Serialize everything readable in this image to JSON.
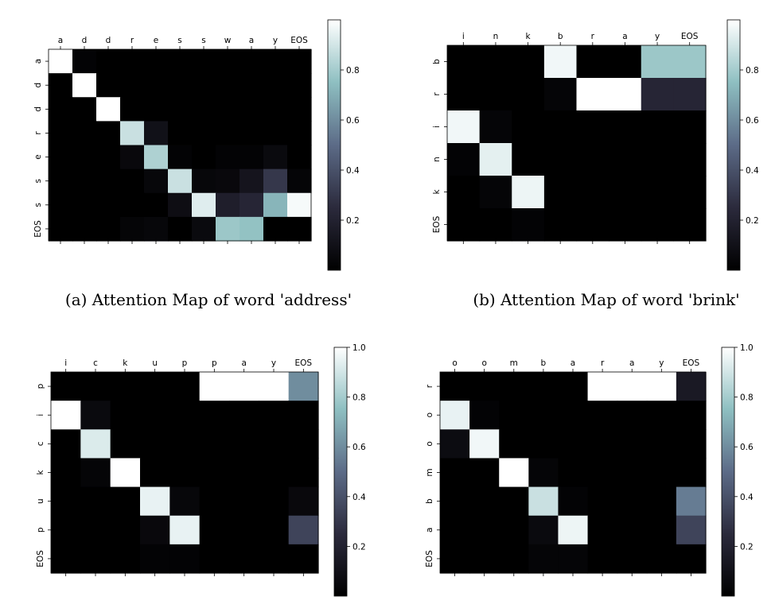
{
  "colors": {
    "colormap": [
      "#000000",
      "#2b2a3c",
      "#5c6b87",
      "#8ebfc1",
      "#ffffff"
    ]
  },
  "chart_data": [
    {
      "type": "heatmap",
      "caption": "(a) Attention Map of word 'address'",
      "x_labels": [
        "a",
        "d",
        "d",
        "r",
        "e",
        "s",
        "s",
        "w",
        "a",
        "y",
        "EOS"
      ],
      "y_labels": [
        "a",
        "d",
        "d",
        "r",
        "e",
        "s",
        "s",
        "EOS"
      ],
      "values": [
        [
          1.0,
          0.02,
          0.0,
          0.0,
          0.0,
          0.0,
          0.0,
          0.0,
          0.0,
          0.0,
          0.0
        ],
        [
          0.0,
          1.0,
          0.0,
          0.0,
          0.0,
          0.0,
          0.0,
          0.0,
          0.0,
          0.0,
          0.0
        ],
        [
          0.0,
          0.0,
          1.0,
          0.0,
          0.0,
          0.0,
          0.0,
          0.0,
          0.0,
          0.0,
          0.0
        ],
        [
          0.0,
          0.0,
          0.0,
          0.88,
          0.1,
          0.0,
          0.0,
          0.0,
          0.0,
          0.0,
          0.0
        ],
        [
          0.0,
          0.0,
          0.0,
          0.05,
          0.82,
          0.02,
          0.0,
          0.02,
          0.02,
          0.06,
          0.0
        ],
        [
          0.0,
          0.0,
          0.0,
          0.0,
          0.04,
          0.88,
          0.04,
          0.05,
          0.12,
          0.3,
          0.03
        ],
        [
          0.0,
          0.0,
          0.0,
          0.0,
          0.0,
          0.08,
          0.93,
          0.18,
          0.22,
          0.72,
          0.98
        ],
        [
          0.0,
          0.0,
          0.0,
          0.03,
          0.04,
          0.0,
          0.06,
          0.78,
          0.76,
          0.0,
          0.0
        ]
      ],
      "colorbar": {
        "ticks": [
          0.2,
          0.4,
          0.6,
          0.8
        ],
        "range": [
          0,
          1
        ]
      }
    },
    {
      "type": "heatmap",
      "caption": "(b) Attention Map of word 'brink'",
      "x_labels": [
        "i",
        "n",
        "k",
        "b",
        "r",
        "a",
        "y",
        "EOS"
      ],
      "y_labels": [
        "b",
        "r",
        "i",
        "n",
        "k",
        "EOS"
      ],
      "values": [
        [
          0.0,
          0.0,
          0.0,
          0.97,
          0.0,
          0.0,
          0.78,
          0.78
        ],
        [
          0.0,
          0.0,
          0.0,
          0.03,
          1.0,
          1.0,
          0.22,
          0.22
        ],
        [
          0.97,
          0.03,
          0.0,
          0.0,
          0.0,
          0.0,
          0.0,
          0.0
        ],
        [
          0.02,
          0.94,
          0.0,
          0.0,
          0.0,
          0.0,
          0.0,
          0.0
        ],
        [
          0.0,
          0.03,
          0.96,
          0.0,
          0.0,
          0.0,
          0.0,
          0.0
        ],
        [
          0.0,
          0.0,
          0.02,
          0.0,
          0.0,
          0.0,
          0.0,
          0.0
        ]
      ],
      "colorbar": {
        "ticks": [
          0.2,
          0.4,
          0.6,
          0.8
        ],
        "range": [
          0,
          1
        ]
      }
    },
    {
      "type": "heatmap",
      "caption": "",
      "x_labels": [
        "i",
        "c",
        "k",
        "u",
        "p",
        "p",
        "a",
        "y",
        "EOS"
      ],
      "y_labels": [
        "p",
        "i",
        "c",
        "k",
        "u",
        "p",
        "EOS"
      ],
      "values": [
        [
          0.0,
          0.0,
          0.0,
          0.0,
          0.0,
          1.0,
          1.0,
          1.0,
          0.6
        ],
        [
          1.0,
          0.06,
          0.0,
          0.0,
          0.0,
          0.0,
          0.0,
          0.0,
          0.0
        ],
        [
          0.0,
          0.92,
          0.0,
          0.0,
          0.0,
          0.0,
          0.0,
          0.0,
          0.0
        ],
        [
          0.0,
          0.03,
          1.0,
          0.0,
          0.0,
          0.0,
          0.0,
          0.0,
          0.0
        ],
        [
          0.0,
          0.0,
          0.0,
          0.95,
          0.04,
          0.0,
          0.0,
          0.0,
          0.05
        ],
        [
          0.0,
          0.0,
          0.0,
          0.05,
          0.95,
          0.0,
          0.0,
          0.0,
          0.35
        ],
        [
          0.0,
          0.0,
          0.0,
          0.02,
          0.02,
          0.0,
          0.0,
          0.0,
          0.0
        ]
      ],
      "colorbar": {
        "ticks": [
          0.2,
          0.4,
          0.6,
          0.8,
          1.0
        ],
        "tick_labels": [
          "0.2",
          "0.4",
          "0.6",
          "0.8",
          "1.0"
        ],
        "range": [
          0,
          1
        ]
      }
    },
    {
      "type": "heatmap",
      "caption": "",
      "x_labels": [
        "o",
        "o",
        "m",
        "b",
        "a",
        "r",
        "a",
        "y",
        "EOS"
      ],
      "y_labels": [
        "r",
        "o",
        "o",
        "m",
        "b",
        "a",
        "EOS"
      ],
      "values": [
        [
          0.0,
          0.0,
          0.0,
          0.0,
          0.0,
          1.0,
          1.0,
          1.0,
          0.15
        ],
        [
          0.95,
          0.02,
          0.0,
          0.0,
          0.0,
          0.0,
          0.0,
          0.0,
          0.0
        ],
        [
          0.07,
          0.97,
          0.0,
          0.0,
          0.0,
          0.0,
          0.0,
          0.0,
          0.0
        ],
        [
          0.0,
          0.0,
          1.0,
          0.03,
          0.0,
          0.0,
          0.0,
          0.0,
          0.0
        ],
        [
          0.0,
          0.0,
          0.0,
          0.88,
          0.02,
          0.0,
          0.0,
          0.0,
          0.55
        ],
        [
          0.0,
          0.0,
          0.0,
          0.06,
          0.96,
          0.0,
          0.0,
          0.0,
          0.35
        ],
        [
          0.0,
          0.0,
          0.0,
          0.03,
          0.03,
          0.0,
          0.0,
          0.0,
          0.0
        ]
      ],
      "colorbar": {
        "ticks": [
          0.2,
          0.4,
          0.6,
          0.8,
          1.0
        ],
        "tick_labels": [
          "0.2",
          "0.4",
          "0.6",
          "0.8",
          "1.0"
        ],
        "range": [
          0,
          1
        ]
      }
    }
  ]
}
